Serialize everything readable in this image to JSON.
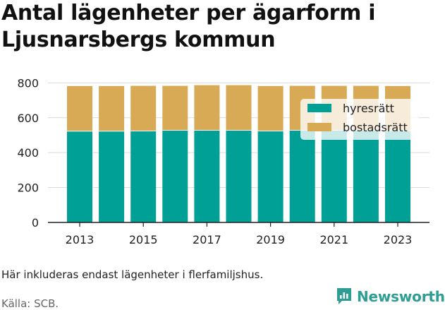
{
  "title": "Antal lägenheter per ägarform i Ljusnarsbergs kommun",
  "note": "Här inkluderas endast lägenheter i flerfamiljshus.",
  "source": "Källa: SCB.",
  "brand": {
    "name": "Newsworthy",
    "icon": "newsworthy-logo-icon",
    "color": "#2e9d94"
  },
  "chart_data": {
    "type": "bar",
    "stacked": true,
    "categories": [
      "2013",
      "2014",
      "2015",
      "2016",
      "2017",
      "2018",
      "2019",
      "2020",
      "2021",
      "2022",
      "2023"
    ],
    "x_tick_labels": [
      "2013",
      "2015",
      "2017",
      "2019",
      "2021",
      "2023"
    ],
    "series": [
      {
        "name": "hyresrätt",
        "color": "#00a096",
        "values": [
          525,
          525,
          526,
          530,
          530,
          530,
          526,
          530,
          530,
          530,
          527
        ]
      },
      {
        "name": "bostadsrätt",
        "color": "#d9aa55",
        "values": [
          257,
          257,
          257,
          253,
          257,
          257,
          256,
          253,
          253,
          253,
          255
        ]
      }
    ],
    "ylim": [
      0,
      850
    ],
    "y_ticks": [
      0,
      200,
      400,
      600,
      800
    ],
    "grid": true,
    "legend_position": "top-right",
    "xlabel": "",
    "ylabel": ""
  }
}
